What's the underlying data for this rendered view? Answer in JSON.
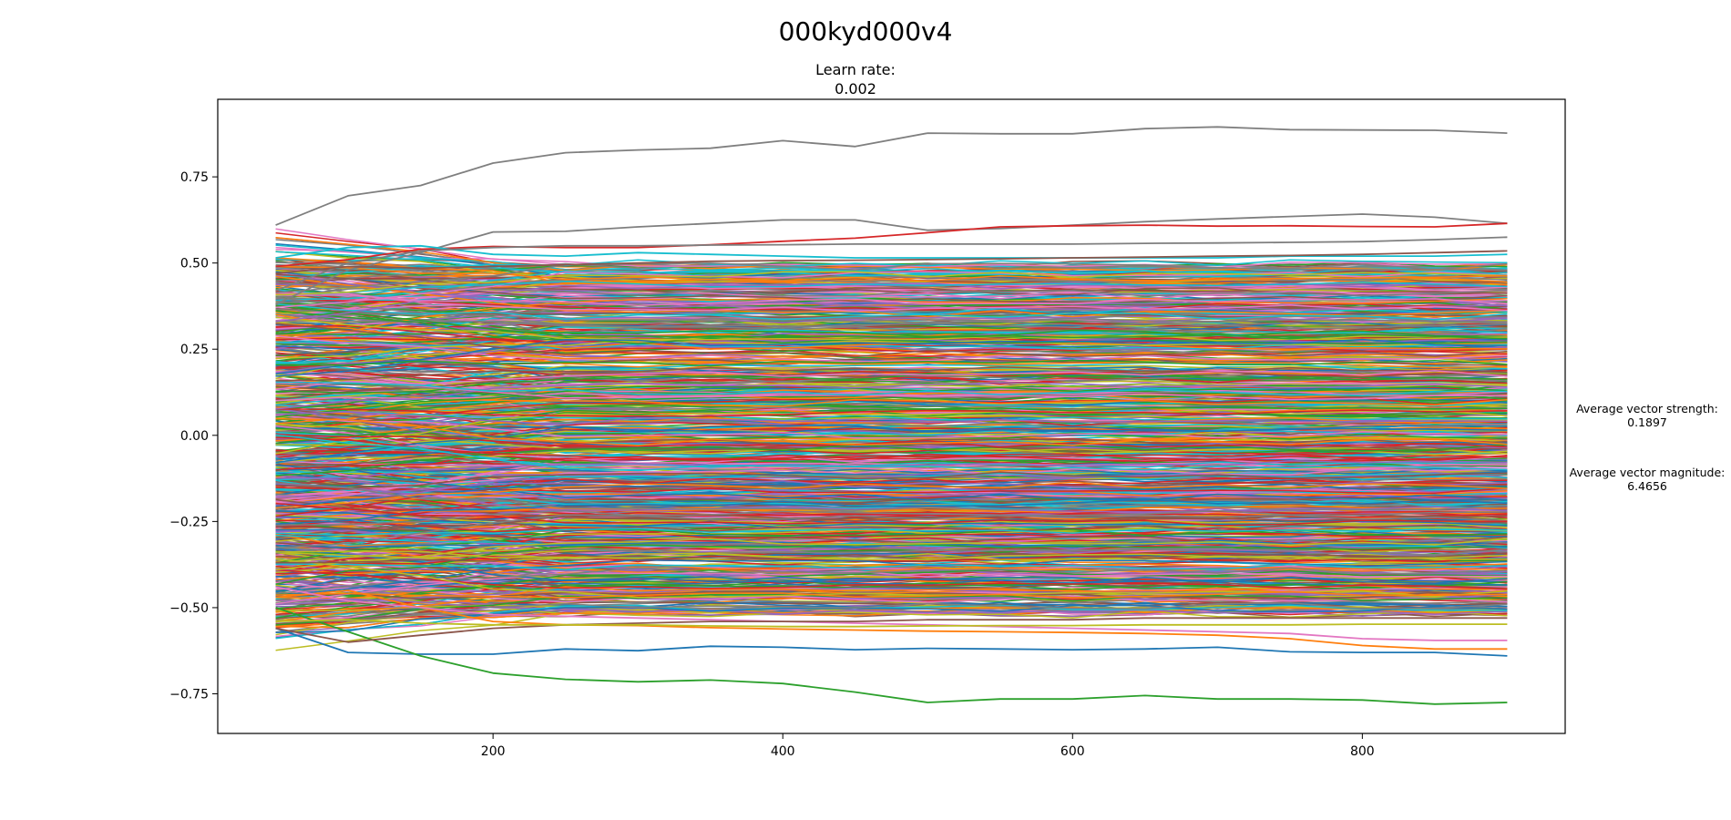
{
  "chart_data": {
    "type": "line",
    "title": "000kyd000v4",
    "subtitle_label": "Learn rate:",
    "subtitle_value": "0.002",
    "xlabel": "",
    "ylabel": "",
    "xlim": [
      10,
      940
    ],
    "ylim": [
      -0.865,
      0.975
    ],
    "x_ticks": [
      200,
      400,
      600,
      800
    ],
    "x_tick_labels": [
      "200",
      "400",
      "600",
      "800"
    ],
    "y_ticks": [
      -0.75,
      -0.5,
      -0.25,
      0.0,
      0.25,
      0.5,
      0.75
    ],
    "y_tick_labels": [
      "−0.75",
      "−0.50",
      "−0.25",
      "0.00",
      "0.25",
      "0.50",
      "0.75"
    ],
    "x": [
      50,
      100,
      150,
      200,
      250,
      300,
      350,
      400,
      450,
      500,
      550,
      600,
      650,
      700,
      750,
      800,
      850,
      900
    ],
    "grid": false,
    "legend": "none",
    "series_count_note": "",
    "highlight_series": [
      {
        "color": "#7f7f7f",
        "values": [
          0.61,
          0.695,
          0.725,
          0.79,
          0.82,
          0.828,
          0.833,
          0.855,
          0.838,
          0.877,
          0.875,
          0.875,
          0.89,
          0.895,
          0.887,
          0.886,
          0.885,
          0.877
        ]
      },
      {
        "color": "#7f7f7f",
        "values": [
          0.38,
          0.48,
          0.53,
          0.59,
          0.592,
          0.605,
          0.615,
          0.625,
          0.625,
          0.595,
          0.6,
          0.61,
          0.62,
          0.628,
          0.635,
          0.642,
          0.633,
          0.615
        ]
      },
      {
        "color": "#d62728",
        "values": [
          0.49,
          0.51,
          0.54,
          0.548,
          0.545,
          0.545,
          0.553,
          0.563,
          0.572,
          0.588,
          0.605,
          0.608,
          0.61,
          0.607,
          0.608,
          0.606,
          0.605,
          0.615
        ]
      },
      {
        "color": "#17becf",
        "values": [
          0.515,
          0.545,
          0.55,
          0.525,
          0.52,
          0.53,
          0.525,
          0.52,
          0.515,
          0.515,
          0.515,
          0.515,
          0.515,
          0.515,
          0.52,
          0.52,
          0.52,
          0.525
        ]
      },
      {
        "color": "#1f77b4",
        "values": [
          -0.56,
          -0.63,
          -0.635,
          -0.635,
          -0.62,
          -0.625,
          -0.612,
          -0.615,
          -0.622,
          -0.618,
          -0.62,
          -0.622,
          -0.62,
          -0.615,
          -0.628,
          -0.63,
          -0.63,
          -0.64
        ]
      },
      {
        "color": "#2ca02c",
        "values": [
          -0.5,
          -0.57,
          -0.64,
          -0.69,
          -0.708,
          -0.715,
          -0.71,
          -0.72,
          -0.745,
          -0.775,
          -0.765,
          -0.765,
          -0.755,
          -0.765,
          -0.765,
          -0.768,
          -0.78,
          -0.775
        ]
      },
      {
        "color": "#ff7f0e",
        "values": [
          -0.47,
          -0.45,
          -0.5,
          -0.54,
          -0.55,
          -0.552,
          -0.558,
          -0.562,
          -0.565,
          -0.568,
          -0.57,
          -0.572,
          -0.575,
          -0.58,
          -0.59,
          -0.61,
          -0.62,
          -0.62
        ]
      },
      {
        "color": "#e377c2",
        "values": [
          -0.44,
          -0.48,
          -0.5,
          -0.52,
          -0.525,
          -0.53,
          -0.535,
          -0.54,
          -0.545,
          -0.55,
          -0.555,
          -0.56,
          -0.565,
          -0.57,
          -0.575,
          -0.59,
          -0.595,
          -0.595
        ]
      },
      {
        "color": "#8c564b",
        "values": [
          -0.56,
          -0.6,
          -0.58,
          -0.56,
          -0.55,
          -0.545,
          -0.54,
          -0.54,
          -0.54,
          -0.535,
          -0.535,
          -0.535,
          -0.53,
          -0.53,
          -0.53,
          -0.53,
          -0.53,
          -0.53
        ]
      },
      {
        "color": "#bcbd22",
        "values": [
          -0.54,
          -0.535,
          -0.545,
          -0.55,
          -0.55,
          -0.55,
          -0.553,
          -0.555,
          -0.555,
          -0.553,
          -0.552,
          -0.552,
          -0.55,
          -0.55,
          -0.55,
          -0.548,
          -0.548,
          -0.548
        ]
      },
      {
        "color": "#7f7f7f",
        "values": [
          0.42,
          0.5,
          0.535,
          0.545,
          0.55,
          0.55,
          0.552,
          0.553,
          0.555,
          0.555,
          0.555,
          0.555,
          0.557,
          0.558,
          0.56,
          0.562,
          0.568,
          0.575
        ]
      },
      {
        "color": "#8c564b",
        "values": [
          0.47,
          0.49,
          0.485,
          0.49,
          0.495,
          0.5,
          0.505,
          0.507,
          0.508,
          0.51,
          0.512,
          0.515,
          0.517,
          0.52,
          0.522,
          0.525,
          0.53,
          0.535
        ]
      }
    ],
    "bulk_series": {
      "count": 900,
      "y_range": [
        -0.52,
        0.5
      ],
      "palette": [
        "#1f77b4",
        "#ff7f0e",
        "#2ca02c",
        "#d62728",
        "#9467bd",
        "#8c564b",
        "#e377c2",
        "#7f7f7f",
        "#bcbd22",
        "#17becf"
      ]
    }
  },
  "annotations": {
    "strength_label": "Average vector strength:",
    "strength_value": "0.1897",
    "magnitude_label": "Average vector magnitude:",
    "magnitude_value": "6.4656"
  }
}
